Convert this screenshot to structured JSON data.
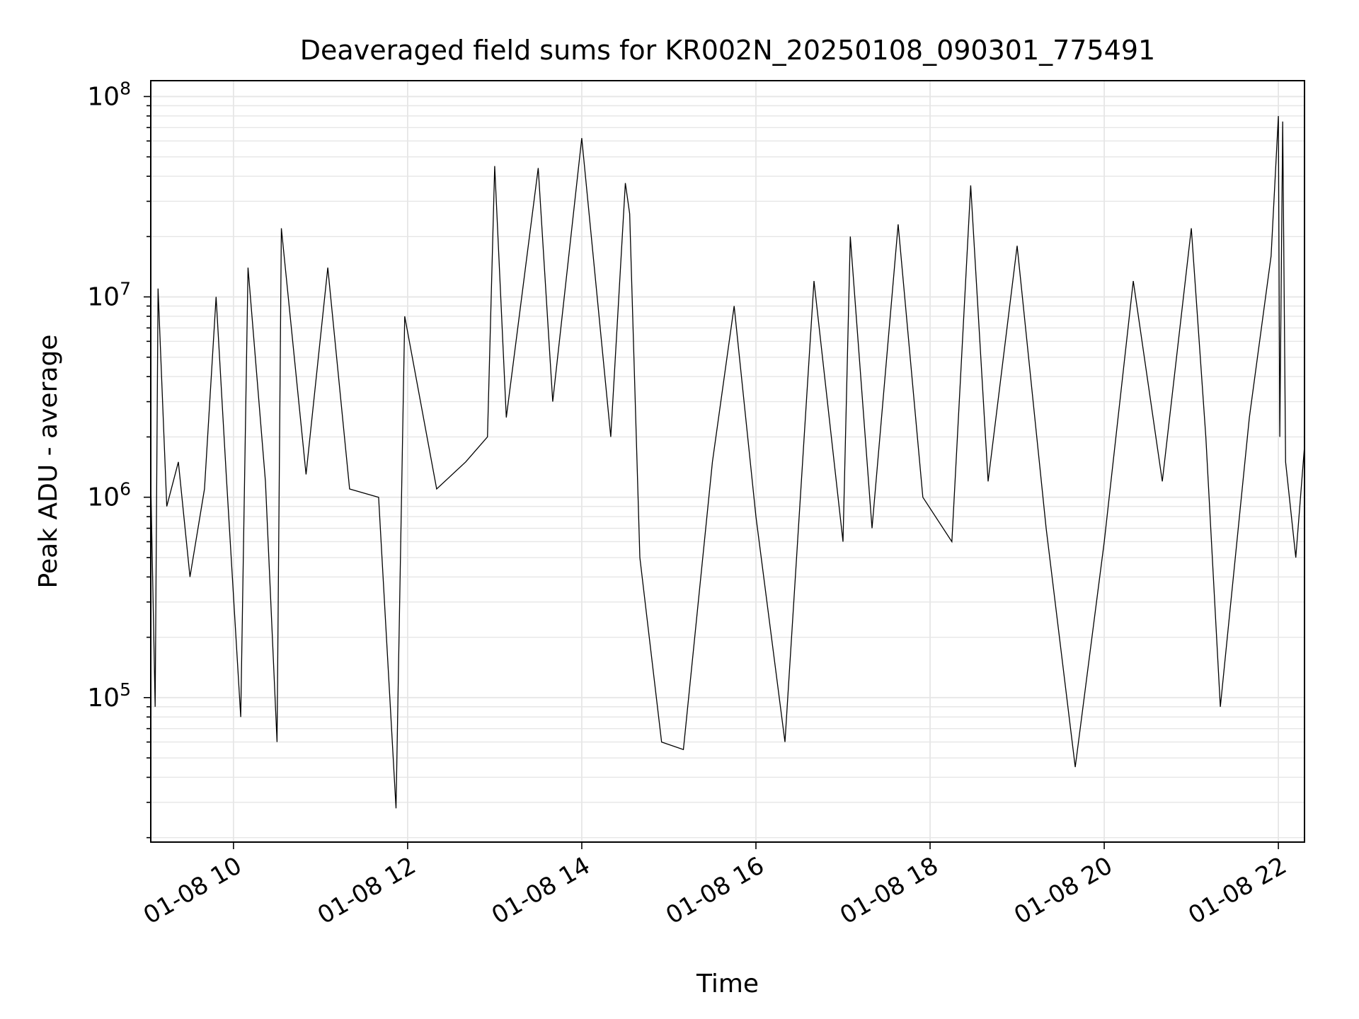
{
  "chart_data": {
    "type": "line",
    "title": "Deaveraged field sums for KR002N_20250108_090301_775491",
    "xlabel": "Time",
    "ylabel": "Peak ADU - average",
    "xlim": [
      "2025-01-08T09:03",
      "2025-01-08T22:18"
    ],
    "ylim": [
      19000,
      120000000
    ],
    "yscale": "log",
    "grid": true,
    "line_color": "#000000",
    "x_ticks": [
      {
        "t": "2025-01-08T10:00",
        "label": "01-08 10"
      },
      {
        "t": "2025-01-08T12:00",
        "label": "01-08 12"
      },
      {
        "t": "2025-01-08T14:00",
        "label": "01-08 14"
      },
      {
        "t": "2025-01-08T16:00",
        "label": "01-08 16"
      },
      {
        "t": "2025-01-08T18:00",
        "label": "01-08 18"
      },
      {
        "t": "2025-01-08T20:00",
        "label": "01-08 20"
      },
      {
        "t": "2025-01-08T22:00",
        "label": "01-08 22"
      }
    ],
    "y_ticks": [
      {
        "value": 100000,
        "base": "10",
        "exp": "5"
      },
      {
        "value": 1000000,
        "base": "10",
        "exp": "6"
      },
      {
        "value": 10000000,
        "base": "10",
        "exp": "7"
      },
      {
        "value": 100000000,
        "base": "10",
        "exp": "8"
      }
    ],
    "series": [
      {
        "x": [
          "2025-01-08T09:03",
          "2025-01-08T09:06",
          "2025-01-08T09:08",
          "2025-01-08T09:14",
          "2025-01-08T09:22",
          "2025-01-08T09:30",
          "2025-01-08T09:40",
          "2025-01-08T09:48",
          "2025-01-08T09:55",
          "2025-01-08T10:05",
          "2025-01-08T10:10",
          "2025-01-08T10:22",
          "2025-01-08T10:30",
          "2025-01-08T10:33",
          "2025-01-08T10:50",
          "2025-01-08T11:05",
          "2025-01-08T11:20",
          "2025-01-08T11:40",
          "2025-01-08T11:52",
          "2025-01-08T11:58",
          "2025-01-08T12:20",
          "2025-01-08T12:40",
          "2025-01-08T12:55",
          "2025-01-08T13:00",
          "2025-01-08T13:08",
          "2025-01-08T13:30",
          "2025-01-08T13:40",
          "2025-01-08T14:00",
          "2025-01-08T14:20",
          "2025-01-08T14:30",
          "2025-01-08T14:33",
          "2025-01-08T14:40",
          "2025-01-08T14:55",
          "2025-01-08T15:10",
          "2025-01-08T15:30",
          "2025-01-08T15:45",
          "2025-01-08T16:00",
          "2025-01-08T16:20",
          "2025-01-08T16:40",
          "2025-01-08T17:00",
          "2025-01-08T17:05",
          "2025-01-08T17:20",
          "2025-01-08T17:38",
          "2025-01-08T17:55",
          "2025-01-08T18:15",
          "2025-01-08T18:28",
          "2025-01-08T18:40",
          "2025-01-08T19:00",
          "2025-01-08T19:20",
          "2025-01-08T19:40",
          "2025-01-08T20:00",
          "2025-01-08T20:20",
          "2025-01-08T20:40",
          "2025-01-08T21:00",
          "2025-01-08T21:10",
          "2025-01-08T21:20",
          "2025-01-08T21:40",
          "2025-01-08T21:55",
          "2025-01-08T22:00",
          "2025-01-08T22:01",
          "2025-01-08T22:03",
          "2025-01-08T22:05",
          "2025-01-08T22:12",
          "2025-01-08T22:18"
        ],
        "values": [
          1200000,
          90000,
          11000000,
          900000,
          1500000,
          400000,
          1100000,
          10000000,
          1300000,
          80000,
          14000000,
          1200000,
          60000,
          22000000,
          1300000,
          14000000,
          1100000,
          1000000,
          28000,
          8000000,
          1100000,
          1500000,
          2000000,
          45000000,
          2500000,
          44000000,
          3000000,
          62000000,
          2000000,
          37000000,
          26000000,
          500000,
          60000,
          55000,
          1500000,
          9000000,
          800000,
          60000,
          12000000,
          600000,
          20000000,
          700000,
          23000000,
          1000000,
          600000,
          36000000,
          1200000,
          18000000,
          700000,
          45000,
          600000,
          12000000,
          1200000,
          22000000,
          2000000,
          90000,
          2500000,
          16000000,
          80000000,
          2000000,
          75000000,
          1500000,
          500000,
          1800000
        ]
      }
    ]
  }
}
